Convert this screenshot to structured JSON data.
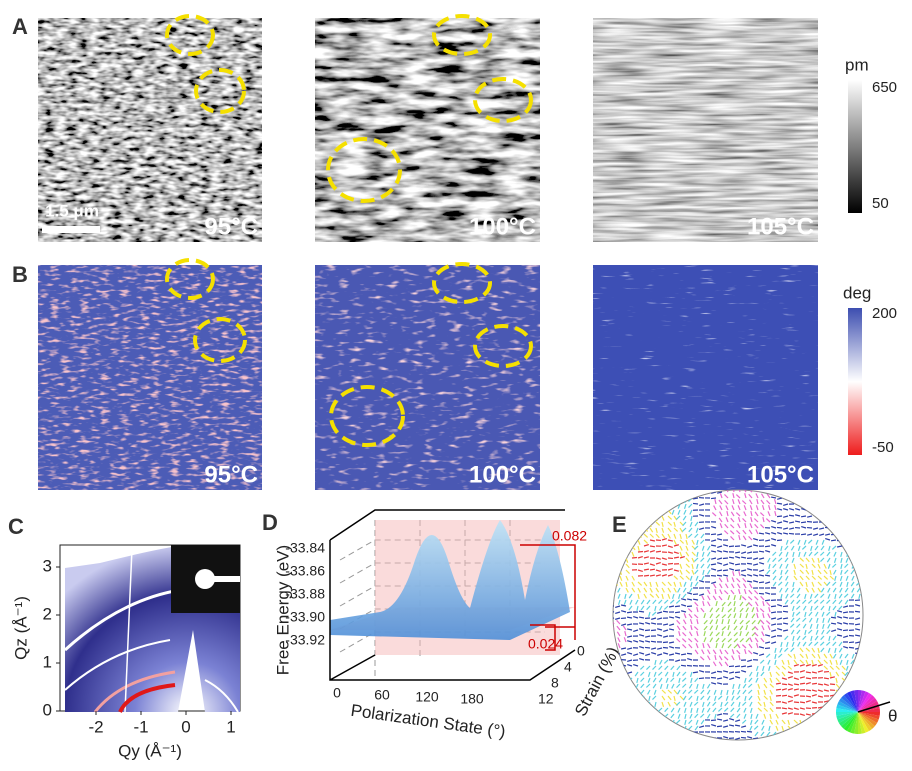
{
  "panels": {
    "a": {
      "label": "A",
      "scale_bar": "1.5 μm",
      "temps": [
        "95°C",
        "100°C",
        "105°C"
      ],
      "colorbar": {
        "unit": "pm",
        "max": "650",
        "min": "50"
      }
    },
    "b": {
      "label": "B",
      "temps": [
        "95°C",
        "100°C",
        "105°C"
      ],
      "colorbar": {
        "unit": "deg",
        "max": "200",
        "min": "-50"
      }
    },
    "c": {
      "label": "C",
      "y_label": "Qz (Å⁻¹)",
      "x_label": "Qy (Å⁻¹)",
      "y_ticks": [
        "0",
        "1",
        "2",
        "3"
      ],
      "x_ticks": [
        "-2",
        "-1",
        "0",
        "1"
      ]
    },
    "d": {
      "label": "D",
      "y_label": "Free Energy (eV)",
      "y_ticks": [
        "-33.84",
        "-33.86",
        "-33.88",
        "-33.90",
        "-33.92"
      ],
      "x_label": "Polarization State (°)",
      "x_ticks": [
        "0",
        "60",
        "120",
        "180"
      ],
      "z_label": "Strain (%)",
      "z_ticks": [
        "12",
        "8",
        "4",
        "0"
      ],
      "annotations": [
        "0.082",
        "0.024"
      ]
    },
    "e": {
      "label": "E",
      "angle_symbol": "θ"
    }
  }
}
